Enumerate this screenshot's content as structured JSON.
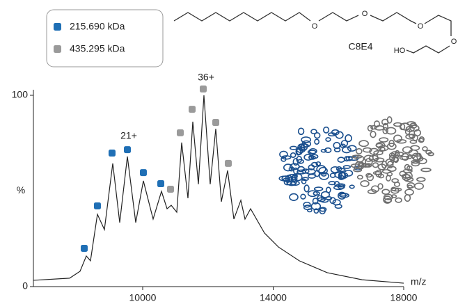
{
  "chart_data": {
    "type": "line",
    "xlabel": "m/z",
    "ylabel": "%",
    "xlim": [
      6651,
      18000
    ],
    "ylim": [
      0,
      100
    ],
    "xticks": [
      10000,
      14000,
      18000
    ],
    "yticks": [
      0,
      100
    ],
    "color": "#222222",
    "x": [
      6651,
      7760,
      8080,
      8272,
      8400,
      8613,
      8827,
      9083,
      9296,
      9531,
      9787,
      10021,
      10320,
      10576,
      10747,
      10875,
      11045,
      11195,
      11387,
      11536,
      11707,
      11877,
      12069,
      12240,
      12411,
      12603,
      12795,
      13008,
      13136,
      13307,
      13733,
      14160,
      14800,
      15653,
      16720,
      18000
    ],
    "values": [
      3.3,
      4.4,
      8,
      16,
      13.5,
      37.8,
      29.8,
      64.4,
      33.5,
      68,
      33.5,
      55.3,
      35.3,
      49.8,
      40.7,
      42.5,
      38.9,
      75.3,
      46.2,
      86.2,
      53.5,
      100,
      53.5,
      82.5,
      44.4,
      60.7,
      35.3,
      45.1,
      35.3,
      40.7,
      28,
      20.7,
      13.5,
      7.3,
      3.6,
      1.8
    ],
    "series": [
      {
        "name": "215.690 kDa",
        "color": "#1f6fb5",
        "x": [
          8208,
          8613,
          9061,
          9531,
          10021,
          10555
        ],
        "values": [
          20,
          42.2,
          69.8,
          71.6,
          59.6,
          53.8
        ]
      },
      {
        "name": "435.295 kDa",
        "color": "#9a9a9a",
        "x": [
          10853,
          11152,
          11515,
          11856,
          12240,
          12624
        ],
        "values": [
          50.9,
          80.4,
          92.7,
          103.3,
          85.8,
          64.4
        ]
      }
    ],
    "annotations": [
      "21+",
      "36+"
    ],
    "structure": {
      "name": "C8E4",
      "atoms": [
        "O",
        "O",
        "O",
        "HO",
        "O"
      ]
    }
  }
}
